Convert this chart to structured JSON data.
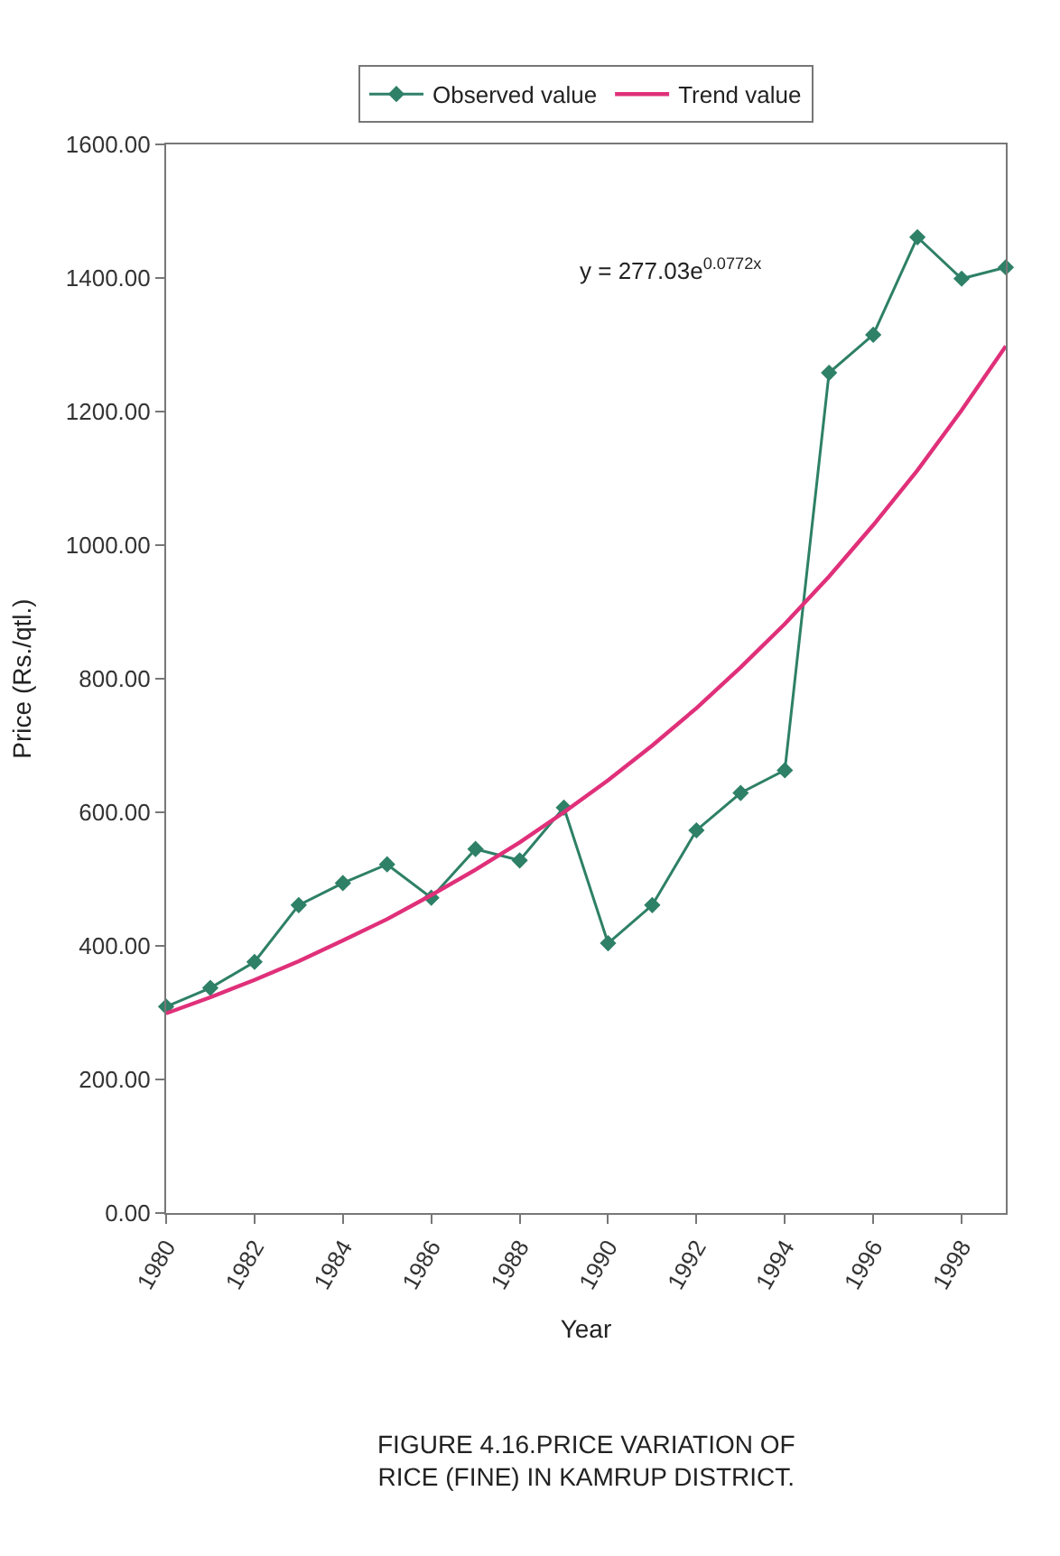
{
  "chart_data": {
    "type": "line",
    "title": "FIGURE 4.16.PRICE VARIATION OF RICE (FINE) IN KAMRUP DISTRICT.",
    "xlabel": "Year",
    "ylabel": "Price (Rs./qtl.)",
    "x": [
      1980,
      1981,
      1982,
      1983,
      1984,
      1985,
      1986,
      1987,
      1988,
      1989,
      1990,
      1991,
      1992,
      1993,
      1994,
      1995,
      1996,
      1997,
      1998,
      1999
    ],
    "series": [
      {
        "name": "Observed value",
        "color": "#2e8066",
        "marker": "diamond",
        "values": [
          309,
          337,
          376,
          461,
          494,
          522,
          472,
          545,
          528,
          607,
          404,
          461,
          573,
          629,
          663,
          1258,
          1315,
          1461,
          1399,
          1416
        ]
      },
      {
        "name": "Trend value",
        "color": "#e0307a",
        "marker": "none",
        "values": [
          299,
          323,
          349,
          377,
          408,
          440,
          476,
          514,
          555,
          600,
          648,
          700,
          756,
          817,
          882,
          953,
          1030,
          1112,
          1202,
          1298
        ]
      }
    ],
    "xlim": [
      1980,
      1999
    ],
    "xticks": [
      1980,
      1982,
      1984,
      1986,
      1988,
      1990,
      1992,
      1994,
      1996,
      1998
    ],
    "ylim": [
      0,
      1600
    ],
    "yticks": [
      {
        "value": 0,
        "label": "0.00"
      },
      {
        "value": 200,
        "label": "200.00"
      },
      {
        "value": 400,
        "label": "400.00"
      },
      {
        "value": 600,
        "label": "600.00"
      },
      {
        "value": 800,
        "label": "800.00"
      },
      {
        "value": 1000,
        "label": "1000.00"
      },
      {
        "value": 1200,
        "label": "1200.00"
      },
      {
        "value": 1400,
        "label": "1400.00"
      },
      {
        "value": 1600,
        "label": "1600.00"
      }
    ],
    "annotations": [
      "y = 277.03e$^{0.0772x}$"
    ],
    "legend": "top",
    "line_style": "solid"
  }
}
